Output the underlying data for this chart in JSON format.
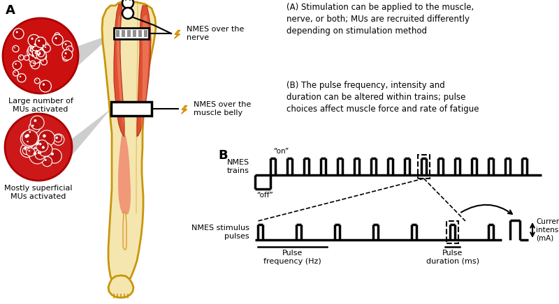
{
  "panel_A_label": "A",
  "panel_B_label": "B",
  "text_A": "(A) Stimulation can be applied to the muscle,\nnerve, or both; MUs are recruited differently\ndepending on stimulation method",
  "text_B": "(B) The pulse frequency, intensity and\nduration can be altered within trains; pulse\nchoices affect muscle force and rate of fatigue",
  "label_large_mu": "Large number of\nMUs activated",
  "label_superficial_mu": "Mostly superficial\nMUs activated",
  "label_nmes_nerve": "NMES over the\nnerve",
  "label_nmes_muscle": "NMES over the\nmuscle belly",
  "label_nmes_trains": "NMES\ntrains",
  "label_nmes_pulses": "NMES stimulus\npulses",
  "label_on": "“on”",
  "label_off": "“off”",
  "label_pulse_freq": "Pulse\nfrequency (Hz)",
  "label_pulse_dur": "Pulse\nduration (ms)",
  "label_current": "Current\nintensity\n(mA)",
  "color_skin": "#F5E6B0",
  "color_skin_outline": "#C8960A",
  "color_muscle_red": "#E05030",
  "color_muscle_light": "#F08868",
  "color_mu_large": "#CC1010",
  "color_mu_lower": "#CC2020",
  "color_lightning": "#F5A800",
  "background_color": "#FFFFFF",
  "font_size_labels": 8,
  "font_size_text": 8.5
}
